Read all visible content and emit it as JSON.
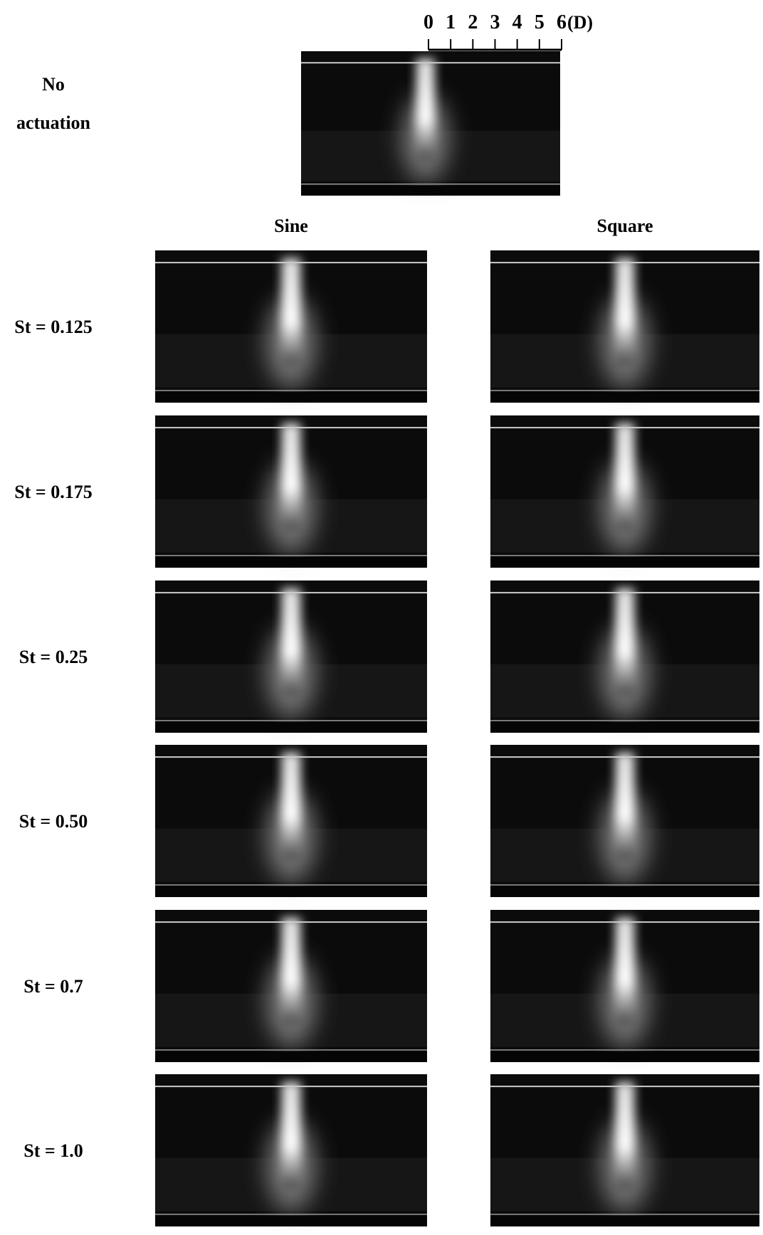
{
  "baseline": {
    "label": [
      "No",
      "actuation"
    ],
    "scale_ticks": [
      "0",
      "1",
      "2",
      "3",
      "4",
      "5",
      "6"
    ],
    "scale_unit": "(D)"
  },
  "columns": [
    "Sine",
    "Square"
  ],
  "rows": [
    "St = 0.125",
    "St = 0.175",
    "St = 0.25",
    "St = 0.50",
    "St = 0.7",
    "St = 1.0"
  ]
}
